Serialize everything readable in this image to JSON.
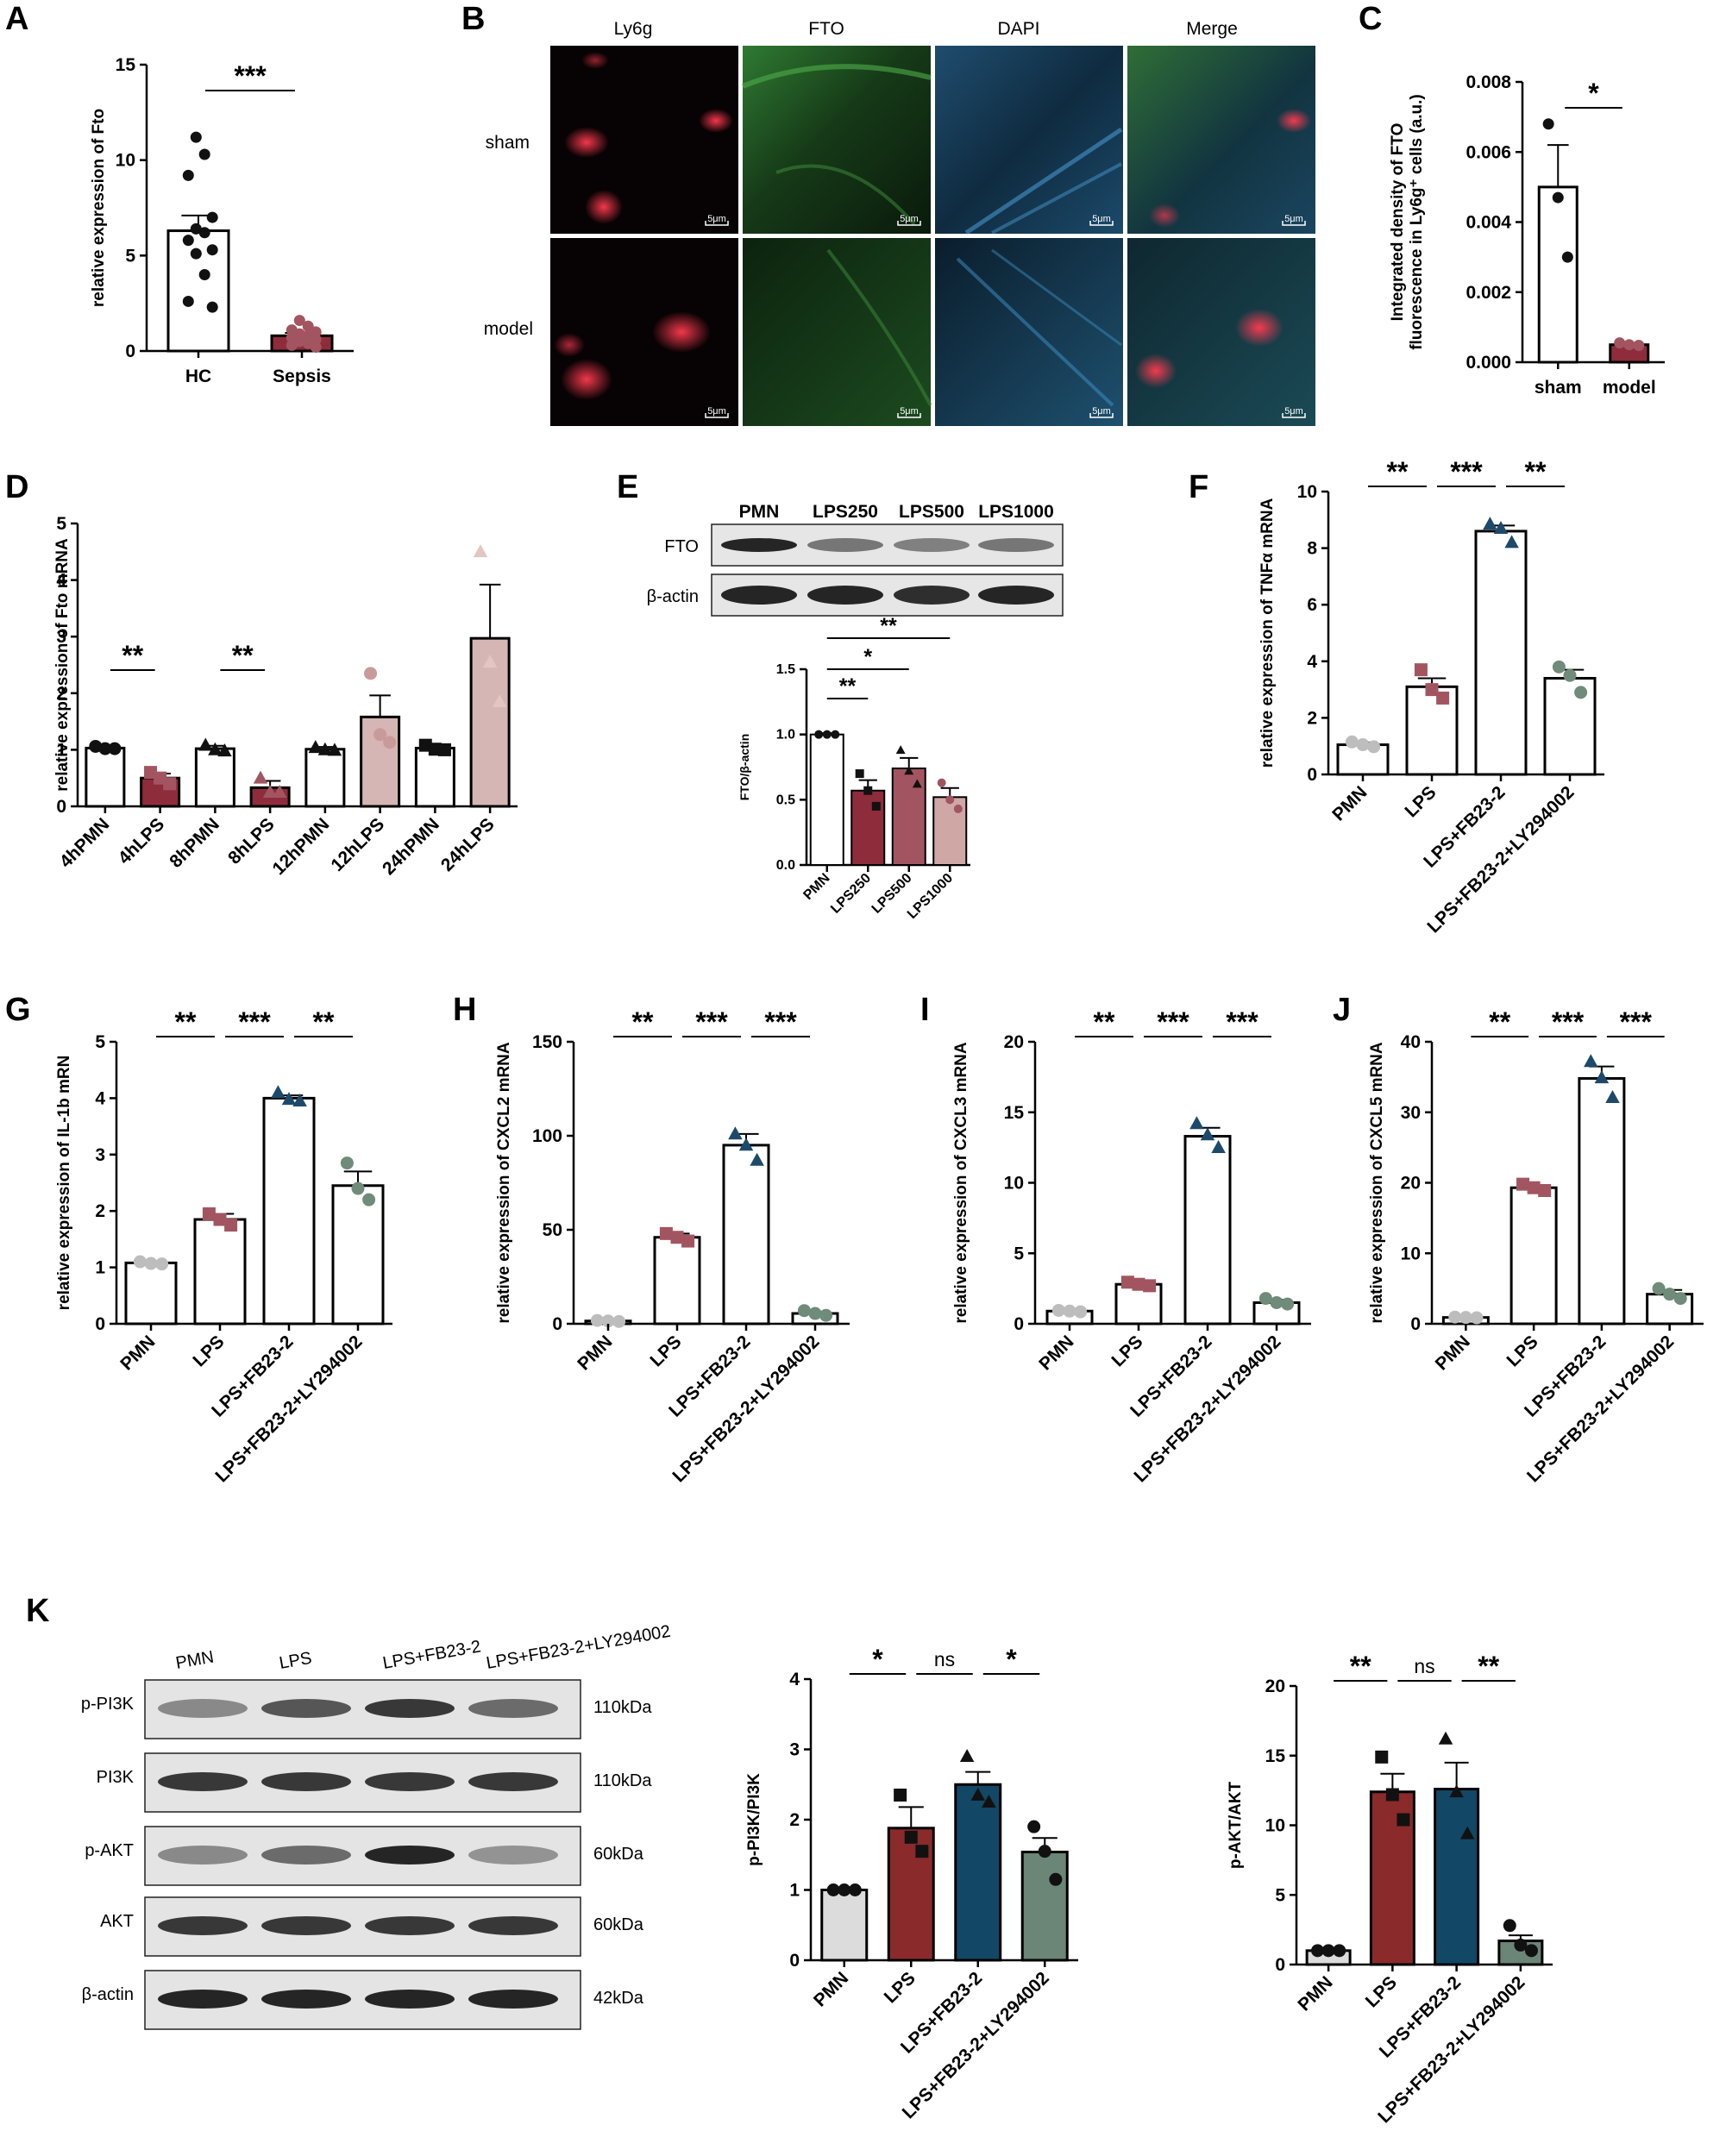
{
  "panel_letters": {
    "A": "A",
    "B": "B",
    "C": "C",
    "D": "D",
    "E": "E",
    "F": "F",
    "G": "G",
    "H": "H",
    "I": "I",
    "J": "J",
    "K": "K"
  },
  "microscopy": {
    "columns": [
      "Ly6g",
      "FTO",
      "DAPI",
      "Merge"
    ],
    "rows": [
      "sham",
      "model"
    ],
    "scale_bar": "5μm"
  },
  "blot_E": {
    "lanes": [
      "PMN",
      "LPS250",
      "LPS500",
      "LPS1000"
    ],
    "rows": [
      "FTO",
      "β-actin"
    ]
  },
  "blot_K": {
    "lanes": [
      "PMN",
      "LPS",
      "LPS+FB23-2",
      "LPS+FB23-2+LY294002"
    ],
    "rows": [
      {
        "label": "p-PI3K",
        "kda": "110kDa"
      },
      {
        "label": "PI3K",
        "kda": "110kDa"
      },
      {
        "label": "p-AKT",
        "kda": "60kDa"
      },
      {
        "label": "AKT",
        "kda": "60kDa"
      },
      {
        "label": "β-actin",
        "kda": "42kDa"
      }
    ]
  },
  "colors": {
    "white": "#ffffff",
    "dark_red": "#8e2c3c",
    "mid_red": "#a25560",
    "pink": "#d6b6b4",
    "navy": "#1d4a6b",
    "sage": "#6f8b7a",
    "gray_dot": "#bdbdbd",
    "bar_red": "#8a2a2a",
    "bar_blue": "#134766",
    "bar_green": "#6b8576",
    "bar_gray": "#dcdcdc"
  },
  "chart_data": [
    {
      "id": "A",
      "type": "bar",
      "categories": [
        "HC",
        "Sepsis"
      ],
      "values": [
        6.3,
        0.8
      ],
      "errors": [
        0.8,
        0.15
      ],
      "points": [
        [
          11.2,
          10.3,
          9.2,
          7.0,
          6.4,
          6.2,
          5.8,
          5.3,
          5.1,
          4.0,
          2.6,
          2.3
        ],
        [
          1.6,
          1.3,
          1.1,
          1.0,
          0.9,
          0.8,
          0.7,
          0.6,
          0.5,
          0.4,
          0.3,
          0.2
        ]
      ],
      "ylabel": "relative expression of Fto",
      "ylim": [
        0,
        15
      ],
      "yticks": [
        0,
        5,
        10,
        15
      ],
      "sig": [
        {
          "from": 0,
          "to": 1,
          "label": "***"
        }
      ]
    },
    {
      "id": "C",
      "type": "bar",
      "categories": [
        "sham",
        "model"
      ],
      "values": [
        0.005,
        0.0005
      ],
      "errors": [
        0.0012,
        5e-05
      ],
      "points": [
        [
          0.0068,
          0.0047,
          0.003
        ],
        [
          0.00055,
          0.0005,
          0.00048
        ]
      ],
      "ylabel": "Integrated density of FTO fluorescence in Ly6g⁺ cells (a.u.)",
      "ylim": [
        0,
        0.008
      ],
      "yticks": [
        0.0,
        0.002,
        0.004,
        0.006,
        0.008
      ],
      "ytick_labels": [
        "0.000",
        "0.002",
        "0.004",
        "0.006",
        "0.008"
      ],
      "sig": [
        {
          "from": 0,
          "to": 1,
          "label": "*"
        }
      ]
    },
    {
      "id": "D",
      "type": "bar",
      "categories": [
        "4hPMN",
        "4hLPS",
        "8hPMN",
        "8hLPS",
        "12hPMN",
        "12hLPS",
        "24hPMN",
        "24hLPS"
      ],
      "values": [
        1.03,
        0.5,
        1.02,
        0.33,
        1.01,
        1.58,
        1.03,
        2.97
      ],
      "errors": [
        0.05,
        0.08,
        0.05,
        0.12,
        0.04,
        0.38,
        0.05,
        0.95
      ],
      "points": [
        [
          1.06,
          1.02,
          1.02
        ],
        [
          0.6,
          0.5,
          0.4
        ],
        [
          1.08,
          1.0,
          0.98
        ],
        [
          0.5,
          0.25,
          0.25
        ],
        [
          1.04,
          1.0,
          0.99
        ],
        [
          2.35,
          1.27,
          1.13
        ],
        [
          1.08,
          1.01,
          1.0
        ],
        [
          4.5,
          2.55,
          1.85
        ]
      ],
      "ylabel": "relative expression of Fto mRNA",
      "ylim": [
        0,
        5
      ],
      "yticks": [
        0,
        1,
        2,
        3,
        4,
        5
      ],
      "sig": [
        {
          "from": 0,
          "to": 1,
          "label": "**"
        },
        {
          "from": 2,
          "to": 3,
          "label": "**"
        }
      ]
    },
    {
      "id": "E",
      "type": "bar",
      "categories": [
        "PMN",
        "LPS250",
        "LPS500",
        "LPS1000"
      ],
      "values": [
        1.0,
        0.57,
        0.74,
        0.52
      ],
      "errors": [
        0.01,
        0.08,
        0.08,
        0.07
      ],
      "points": [
        [
          1.0,
          1.0,
          1.0
        ],
        [
          0.7,
          0.57,
          0.45
        ],
        [
          0.88,
          0.72,
          0.62
        ],
        [
          0.63,
          0.5,
          0.43
        ]
      ],
      "ylabel": "FTO/β-actin",
      "ylim": [
        0,
        1.5
      ],
      "yticks": [
        0.0,
        0.5,
        1.0,
        1.5
      ],
      "ytick_labels": [
        "0.0",
        "0.5",
        "1.0",
        "1.5"
      ],
      "sig": [
        {
          "from": 0,
          "to": 1,
          "label": "**"
        },
        {
          "from": 0,
          "to": 2,
          "label": "*"
        },
        {
          "from": 0,
          "to": 3,
          "label": "**"
        }
      ]
    },
    {
      "id": "F",
      "type": "bar",
      "categories": [
        "PMN",
        "LPS",
        "LPS+FB23-2",
        "LPS+FB23-2+LY294002"
      ],
      "values": [
        1.05,
        3.1,
        8.6,
        3.4
      ],
      "errors": [
        0.08,
        0.3,
        0.2,
        0.3
      ],
      "points": [
        [
          1.15,
          1.05,
          0.98
        ],
        [
          3.7,
          3.0,
          2.7
        ],
        [
          8.85,
          8.7,
          8.2
        ],
        [
          3.8,
          3.5,
          2.9
        ]
      ],
      "ylabel": "relative expression of TNFα mRNA",
      "ylim": [
        0,
        10
      ],
      "yticks": [
        0,
        2,
        4,
        6,
        8,
        10
      ],
      "sig": [
        {
          "from": 0,
          "to": 1,
          "label": "**"
        },
        {
          "from": 1,
          "to": 2,
          "label": "***"
        },
        {
          "from": 2,
          "to": 3,
          "label": "**"
        }
      ]
    },
    {
      "id": "G",
      "type": "bar",
      "categories": [
        "PMN",
        "LPS",
        "LPS+FB23-2",
        "LPS+FB23-2+LY294002"
      ],
      "values": [
        1.08,
        1.85,
        4.0,
        2.45
      ],
      "errors": [
        0.03,
        0.1,
        0.05,
        0.25
      ],
      "points": [
        [
          1.1,
          1.07,
          1.06
        ],
        [
          1.95,
          1.85,
          1.75
        ],
        [
          4.1,
          3.98,
          3.95
        ],
        [
          2.85,
          2.4,
          2.2
        ]
      ],
      "ylabel": "relative expression of IL-1b mRN",
      "ylim": [
        0,
        5
      ],
      "yticks": [
        0,
        1,
        2,
        3,
        4,
        5
      ],
      "sig": [
        {
          "from": 0,
          "to": 1,
          "label": "**"
        },
        {
          "from": 1,
          "to": 2,
          "label": "***"
        },
        {
          "from": 2,
          "to": 3,
          "label": "**"
        }
      ]
    },
    {
      "id": "H",
      "type": "bar",
      "categories": [
        "PMN",
        "LPS",
        "LPS+FB23-2",
        "LPS+FB23-2+LY294002"
      ],
      "values": [
        1.5,
        46,
        95,
        5.5
      ],
      "errors": [
        0.3,
        2,
        6,
        1
      ],
      "points": [
        [
          1.8,
          1.5,
          1.2
        ],
        [
          48,
          46,
          44
        ],
        [
          101,
          95,
          87
        ],
        [
          7,
          5.5,
          4.5
        ]
      ],
      "ylabel": "relative expression of CXCL2 mRNA",
      "ylim": [
        0,
        150
      ],
      "yticks": [
        0,
        50,
        100,
        150
      ],
      "sig": [
        {
          "from": 0,
          "to": 1,
          "label": "**"
        },
        {
          "from": 1,
          "to": 2,
          "label": "***"
        },
        {
          "from": 2,
          "to": 3,
          "label": "***"
        }
      ]
    },
    {
      "id": "I",
      "type": "bar",
      "categories": [
        "PMN",
        "LPS",
        "LPS+FB23-2",
        "LPS+FB23-2+LY294002"
      ],
      "values": [
        0.9,
        2.8,
        13.3,
        1.5
      ],
      "errors": [
        0.05,
        0.15,
        0.6,
        0.2
      ],
      "points": [
        [
          0.95,
          0.9,
          0.85
        ],
        [
          2.95,
          2.8,
          2.7
        ],
        [
          14.2,
          13.4,
          12.5
        ],
        [
          1.8,
          1.5,
          1.4
        ]
      ],
      "ylabel": "relative expression of CXCL3 mRNA",
      "ylim": [
        0,
        20
      ],
      "yticks": [
        0,
        5,
        10,
        15,
        20
      ],
      "sig": [
        {
          "from": 0,
          "to": 1,
          "label": "**"
        },
        {
          "from": 1,
          "to": 2,
          "label": "***"
        },
        {
          "from": 2,
          "to": 3,
          "label": "***"
        }
      ]
    },
    {
      "id": "J",
      "type": "bar",
      "categories": [
        "PMN",
        "LPS",
        "LPS+FB23-2",
        "LPS+FB23-2+LY294002"
      ],
      "values": [
        0.9,
        19.3,
        34.8,
        4.2
      ],
      "errors": [
        0.05,
        0.4,
        1.7,
        0.6
      ],
      "points": [
        [
          0.95,
          0.9,
          0.85
        ],
        [
          19.8,
          19.3,
          18.9
        ],
        [
          37.2,
          34.9,
          32.1
        ],
        [
          5.0,
          4.2,
          3.6
        ]
      ],
      "ylabel": "relative expression of CXCL5 mRNA",
      "ylim": [
        0,
        40
      ],
      "yticks": [
        0,
        10,
        20,
        30,
        40
      ],
      "sig": [
        {
          "from": 0,
          "to": 1,
          "label": "**"
        },
        {
          "from": 1,
          "to": 2,
          "label": "***"
        },
        {
          "from": 2,
          "to": 3,
          "label": "***"
        }
      ]
    },
    {
      "id": "K1",
      "type": "bar",
      "categories": [
        "PMN",
        "LPS",
        "LPS+FB23-2",
        "LPS+FB23-2+LY294002"
      ],
      "values": [
        1.0,
        1.88,
        2.5,
        1.54
      ],
      "errors": [
        0.01,
        0.3,
        0.18,
        0.2
      ],
      "points": [
        [
          1.0,
          1.0,
          1.0
        ],
        [
          2.35,
          1.75,
          1.55
        ],
        [
          2.9,
          2.35,
          2.25
        ],
        [
          1.9,
          1.55,
          1.15
        ]
      ],
      "ylabel": "p-PI3K/PI3K",
      "ylim": [
        0,
        4
      ],
      "yticks": [
        0,
        1,
        2,
        3,
        4
      ],
      "sig": [
        {
          "from": 0,
          "to": 1,
          "label": "*"
        },
        {
          "from": 1,
          "to": 2,
          "label": "ns"
        },
        {
          "from": 2,
          "to": 3,
          "label": "*"
        }
      ]
    },
    {
      "id": "K2",
      "type": "bar",
      "categories": [
        "PMN",
        "LPS",
        "LPS+FB23-2",
        "LPS+FB23-2+LY294002"
      ],
      "values": [
        1.0,
        12.4,
        12.6,
        1.7
      ],
      "errors": [
        0.05,
        1.3,
        1.9,
        0.4
      ],
      "points": [
        [
          1.0,
          1.0,
          1.0
        ],
        [
          14.9,
          12.2,
          10.4
        ],
        [
          16.2,
          12.4,
          9.4
        ],
        [
          2.8,
          1.4,
          1.0
        ]
      ],
      "ylabel": "p-AKT/AKT",
      "ylim": [
        0,
        20
      ],
      "yticks": [
        0,
        5,
        10,
        15,
        20
      ],
      "sig": [
        {
          "from": 0,
          "to": 1,
          "label": "**"
        },
        {
          "from": 1,
          "to": 2,
          "label": "ns"
        },
        {
          "from": 2,
          "to": 3,
          "label": "**"
        }
      ]
    }
  ]
}
